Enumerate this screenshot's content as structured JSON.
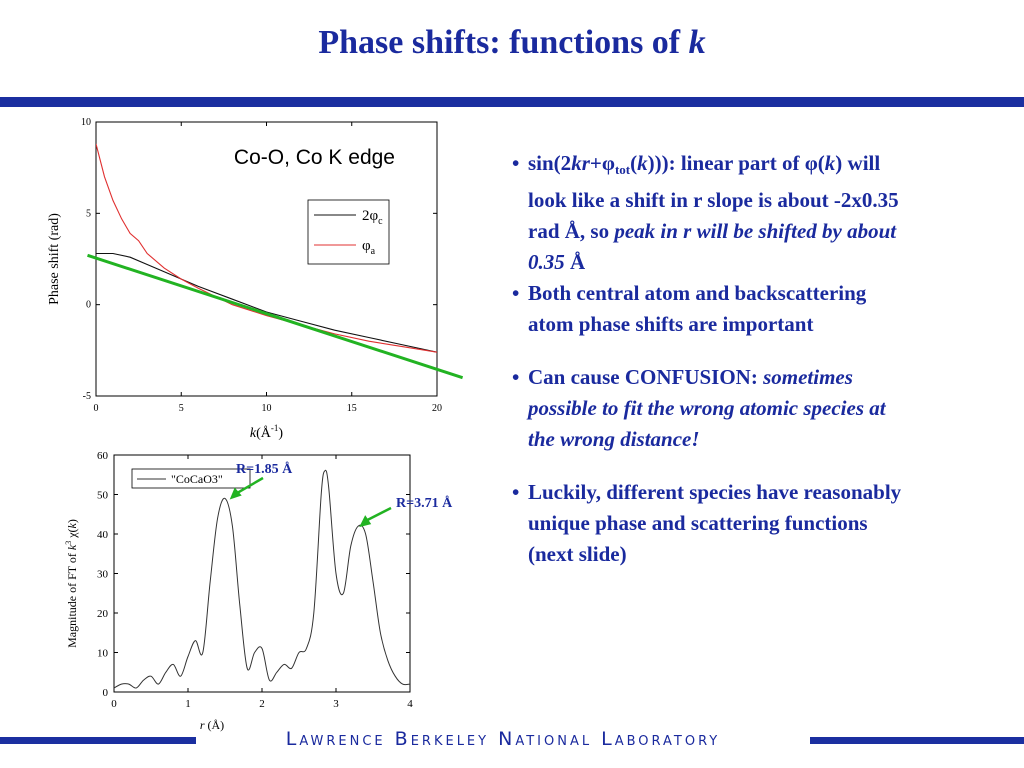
{
  "title": {
    "main": "Phase shifts: functions of ",
    "var": "k"
  },
  "footer": "Lawrence Berkeley National Laboratory",
  "colors": {
    "accent": "#1a2a9e",
    "fit_line": "#22b322",
    "phi_a": "#e03030",
    "two_phi_c": "#111111"
  },
  "chart_data": [
    {
      "type": "line",
      "title": "Co-O, Co K edge",
      "xlabel_var": "k",
      "xlabel_rest": "(Å",
      "xlabel_sup": "-1",
      "xlabel_close": ")",
      "ylabel": "Phase shift (rad)",
      "xlim": [
        0,
        20
      ],
      "ylim": [
        -5,
        10
      ],
      "xticks": [
        0,
        5,
        10,
        15,
        20
      ],
      "yticks": [
        -5,
        0,
        5,
        10
      ],
      "legend_placement": "right",
      "series": [
        {
          "name": "2φ",
          "name_sub": "c",
          "x": [
            0,
            1,
            2,
            3,
            4,
            6,
            8,
            10,
            12,
            14,
            16,
            18,
            20
          ],
          "y": [
            2.8,
            2.8,
            2.6,
            2.2,
            1.8,
            1.0,
            0.3,
            -0.4,
            -0.9,
            -1.4,
            -1.8,
            -2.2,
            -2.6
          ]
        },
        {
          "name": "φ",
          "name_sub": "a",
          "x": [
            0,
            0.5,
            1,
            1.5,
            2,
            2.5,
            3,
            4,
            5,
            6,
            8,
            10,
            12,
            14,
            16,
            18,
            20
          ],
          "y": [
            8.8,
            7.0,
            5.7,
            4.7,
            3.9,
            3.5,
            2.8,
            2.0,
            1.4,
            0.9,
            0.0,
            -0.6,
            -1.1,
            -1.6,
            -2.0,
            -2.3,
            -2.6
          ]
        },
        {
          "name": "",
          "x": [
            -0.5,
            21.5
          ],
          "y": [
            2.7,
            -4.0
          ]
        }
      ]
    },
    {
      "type": "line",
      "xlabel_var": "r",
      "xlabel_rest": " (Å)",
      "ylabel_pre": "Magnitude of FT of ",
      "ylabel_var": "k",
      "ylabel_sup": "3",
      "ylabel_post": " χ(",
      "ylabel_var2": "k",
      "ylabel_close": ")",
      "xlim": [
        0,
        4
      ],
      "ylim": [
        0,
        60
      ],
      "xticks": [
        0,
        1,
        2,
        3,
        4
      ],
      "yticks": [
        0,
        10,
        20,
        30,
        40,
        50,
        60
      ],
      "legend_placement": "top-left",
      "series": [
        {
          "name": "\"CoCaO3\"",
          "x": [
            0.0,
            0.1,
            0.2,
            0.3,
            0.4,
            0.5,
            0.6,
            0.7,
            0.8,
            0.9,
            1.0,
            1.1,
            1.2,
            1.3,
            1.4,
            1.5,
            1.6,
            1.7,
            1.8,
            1.9,
            2.0,
            2.1,
            2.2,
            2.3,
            2.4,
            2.5,
            2.6,
            2.7,
            2.8,
            2.85,
            2.9,
            3.0,
            3.1,
            3.2,
            3.3,
            3.4,
            3.5,
            3.6,
            3.7,
            3.8,
            3.9,
            4.0
          ],
          "y": [
            1,
            2,
            2,
            1,
            3,
            4,
            2,
            5,
            7,
            4,
            9,
            13,
            10,
            28,
            44,
            49,
            42,
            22,
            6,
            10,
            11,
            3,
            5,
            7,
            6,
            10,
            11,
            20,
            50,
            56,
            52,
            30,
            25,
            37,
            42,
            40,
            28,
            15,
            8,
            4,
            2,
            2
          ]
        }
      ],
      "annotations": [
        {
          "text": "R=1.85 Å",
          "x": 1.55,
          "y": 49
        },
        {
          "text": "R=3.71 Å",
          "x": 3.3,
          "y": 42
        }
      ]
    }
  ],
  "bullets": [
    {
      "parts": [
        {
          "t": "sin(2",
          "s": "n"
        },
        {
          "t": "kr",
          "s": "i"
        },
        {
          "t": "+φ",
          "s": "n"
        },
        {
          "t": "tot",
          "s": "sub"
        },
        {
          "t": "(",
          "s": "n"
        },
        {
          "t": "k",
          "s": "i"
        },
        {
          "t": "))): linear part of φ(",
          "s": "n"
        },
        {
          "t": "k",
          "s": "i"
        },
        {
          "t": ") will look like a shift in r slope is about -2x0.35 rad Å, so ",
          "s": "n"
        },
        {
          "t": "peak in r will be shifted by about 0.35",
          "s": "i"
        },
        {
          "t": " Å",
          "s": "n"
        }
      ]
    },
    {
      "parts": [
        {
          "t": "Both central atom and backscattering atom phase shifts are important",
          "s": "n"
        }
      ]
    },
    {
      "gap": true,
      "parts": [
        {
          "t": "Can cause CONFUSION: ",
          "s": "n"
        },
        {
          "t": "sometimes possible to fit the wrong atomic species at the wrong distance!",
          "s": "i"
        }
      ]
    },
    {
      "gap": true,
      "parts": [
        {
          "t": "Luckily, different species have reasonably unique phase and scattering functions (next slide)",
          "s": "n"
        }
      ]
    }
  ]
}
